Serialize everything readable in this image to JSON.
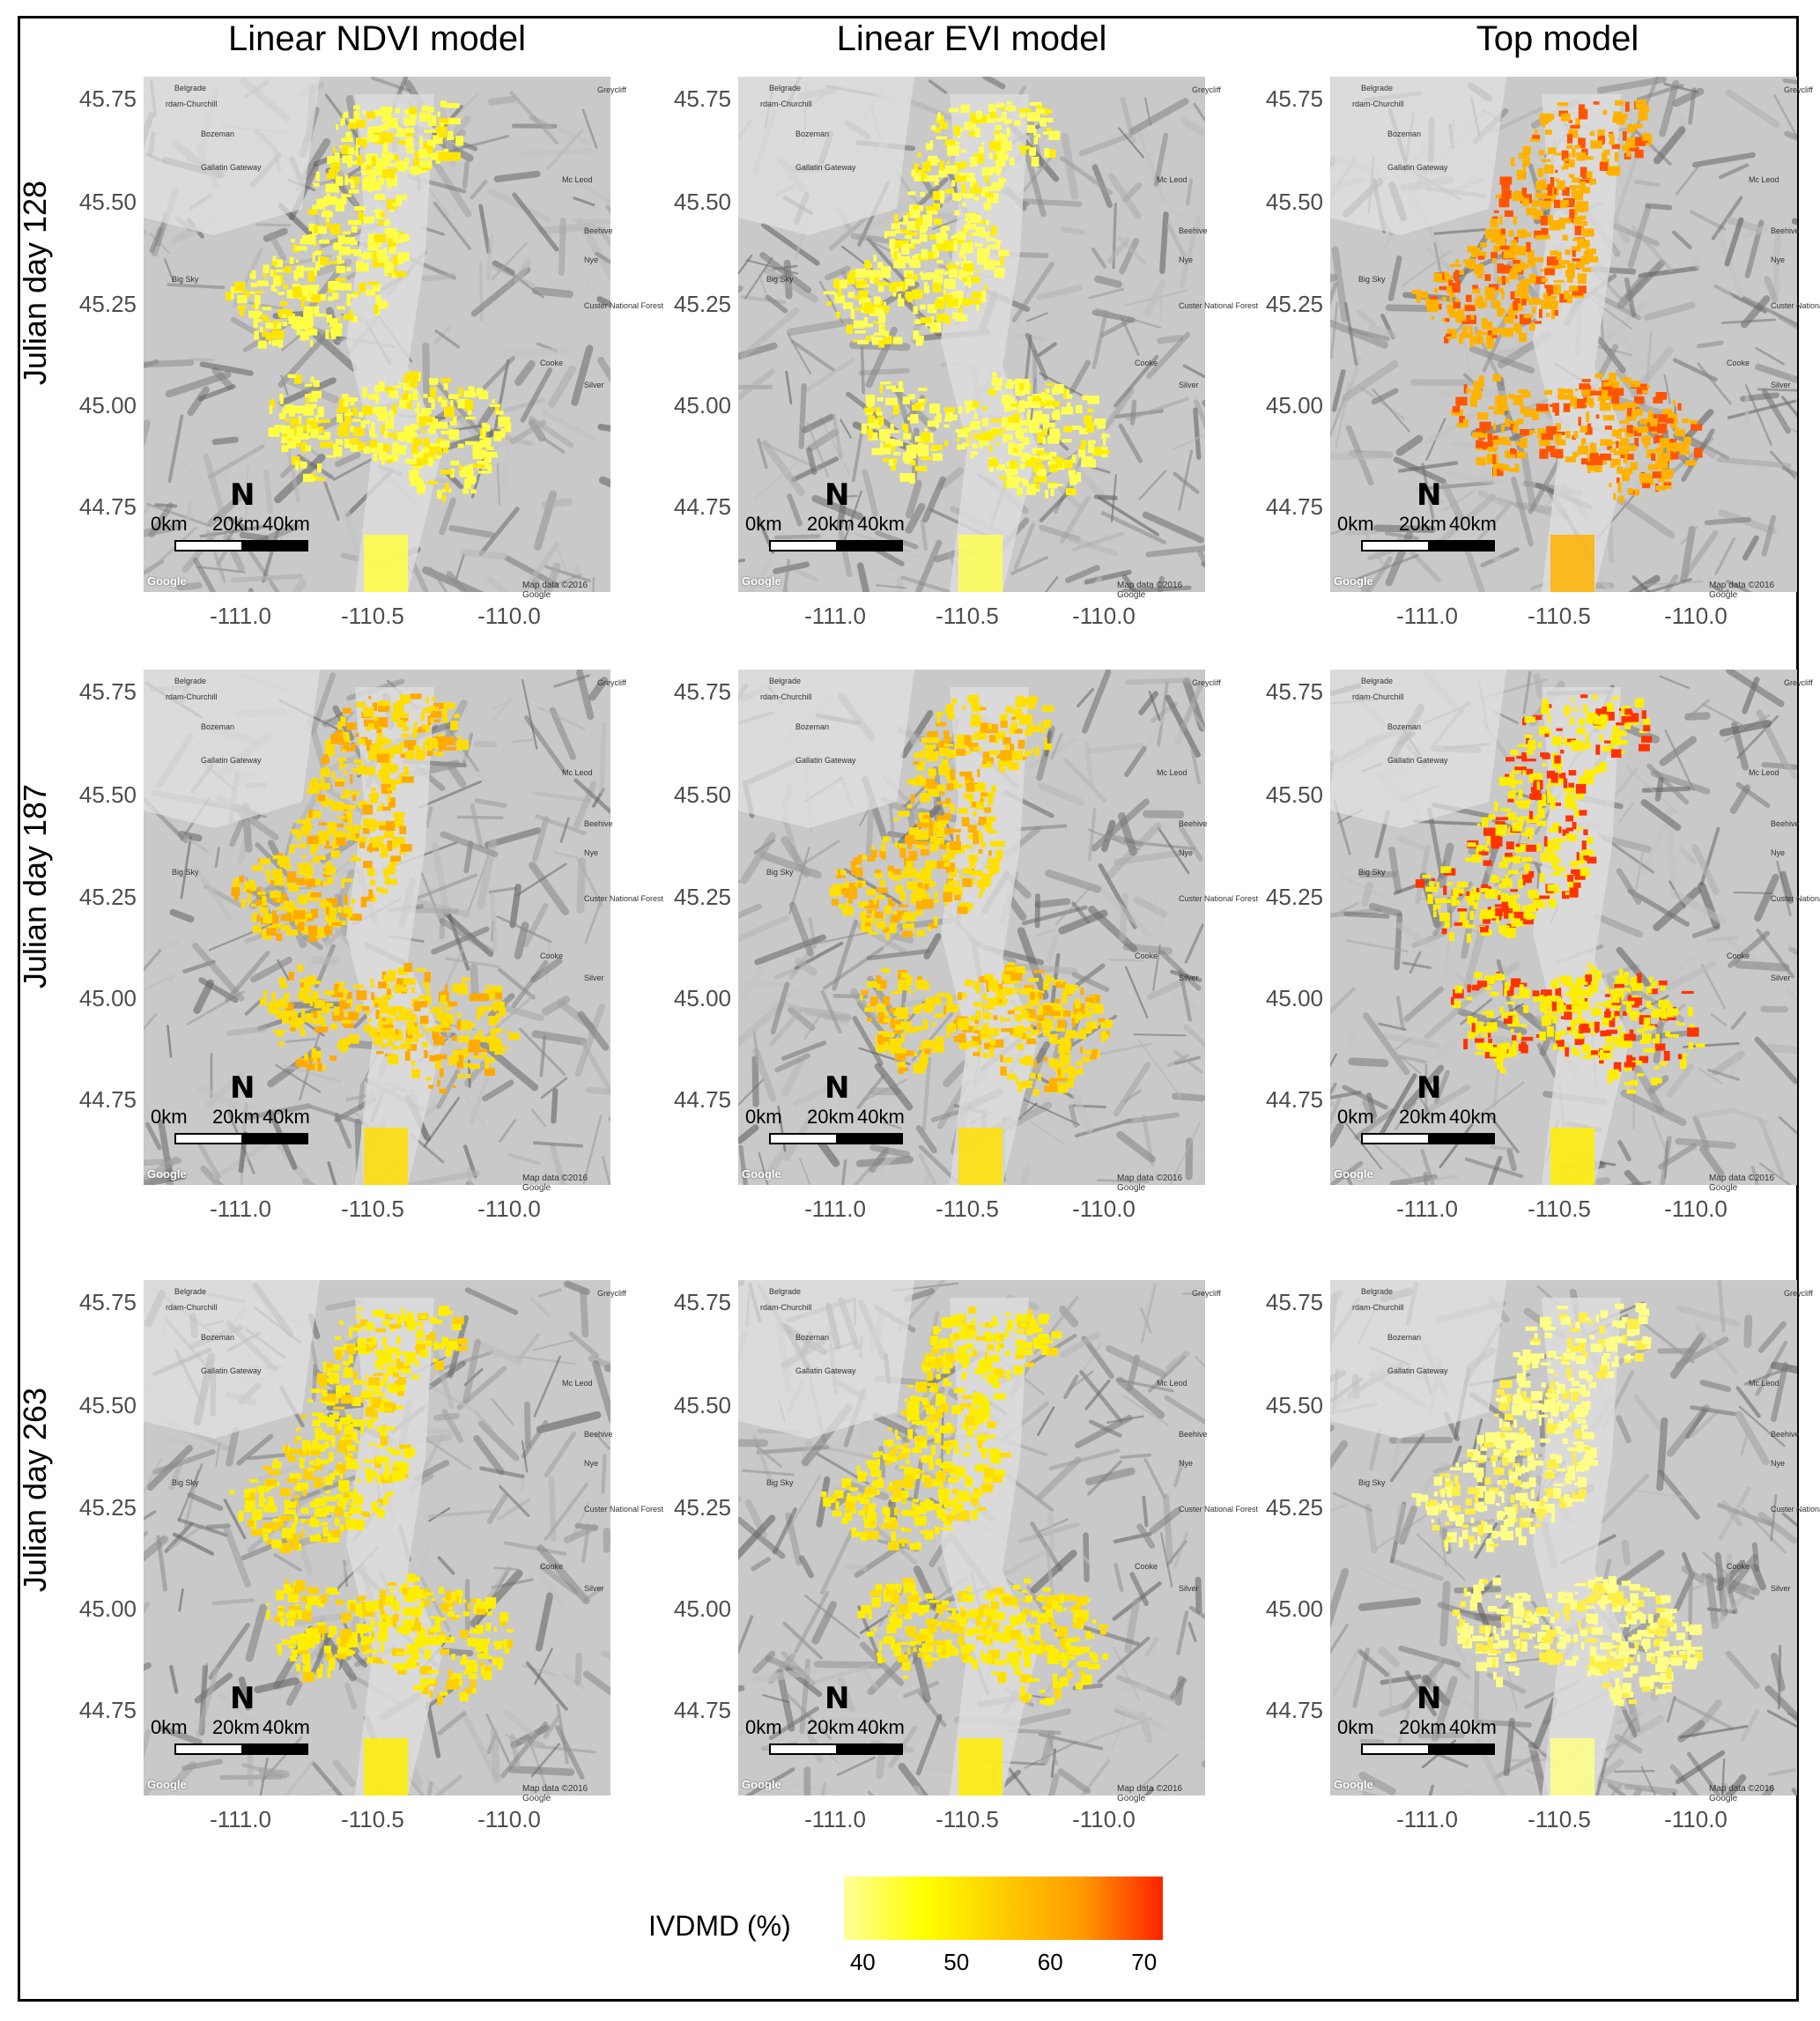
{
  "column_titles": [
    "Linear NDVI model",
    "Linear EVI model",
    "Top model"
  ],
  "row_titles": [
    "Julian day 128",
    "Julian day 187",
    "Julian day 263"
  ],
  "y_ticks": [
    "45.75",
    "45.50",
    "45.25",
    "45.00",
    "44.75"
  ],
  "x_ticks": [
    "-111.0",
    "-110.5",
    "-110.0"
  ],
  "scale_bar": {
    "labels": [
      "0km",
      "20km",
      "40km"
    ],
    "north_symbol": "N"
  },
  "map_attribution": {
    "google": "Google",
    "map_data": "Map data ©2016 Google"
  },
  "place_names": [
    "Belgrade",
    "rdam-Churchill",
    "Bozeman",
    "Gallatin Gateway",
    "Big Sky",
    "Greycliff",
    "Mc Leod",
    "Nye",
    "Beehive",
    "Custer National Forest",
    "Silver",
    "Cooke"
  ],
  "legend": {
    "title": "IVDMD (%)",
    "ticks": [
      "40",
      "50",
      "60",
      "70"
    ],
    "range": [
      38,
      72
    ],
    "colors": [
      "#ffff99",
      "#ffff00",
      "#ffcc00",
      "#ff9900",
      "#ff2200"
    ]
  },
  "panels": [
    {
      "row": 0,
      "col": 0,
      "color_low": "#ffff44",
      "color_high": "#ffe600"
    },
    {
      "row": 0,
      "col": 1,
      "color_low": "#ffff55",
      "color_high": "#ffee00"
    },
    {
      "row": 0,
      "col": 2,
      "color_low": "#ffb300",
      "color_high": "#ff5500"
    },
    {
      "row": 1,
      "col": 0,
      "color_low": "#ffdd00",
      "color_high": "#ffaa00"
    },
    {
      "row": 1,
      "col": 1,
      "color_low": "#ffe000",
      "color_high": "#ffb000"
    },
    {
      "row": 1,
      "col": 2,
      "color_low": "#ffee00",
      "color_high": "#ff3300"
    },
    {
      "row": 2,
      "col": 0,
      "color_low": "#ffee00",
      "color_high": "#ffd000"
    },
    {
      "row": 2,
      "col": 1,
      "color_low": "#ffee00",
      "color_high": "#ffdd00"
    },
    {
      "row": 2,
      "col": 2,
      "color_low": "#ffff88",
      "color_high": "#ffee44"
    }
  ]
}
